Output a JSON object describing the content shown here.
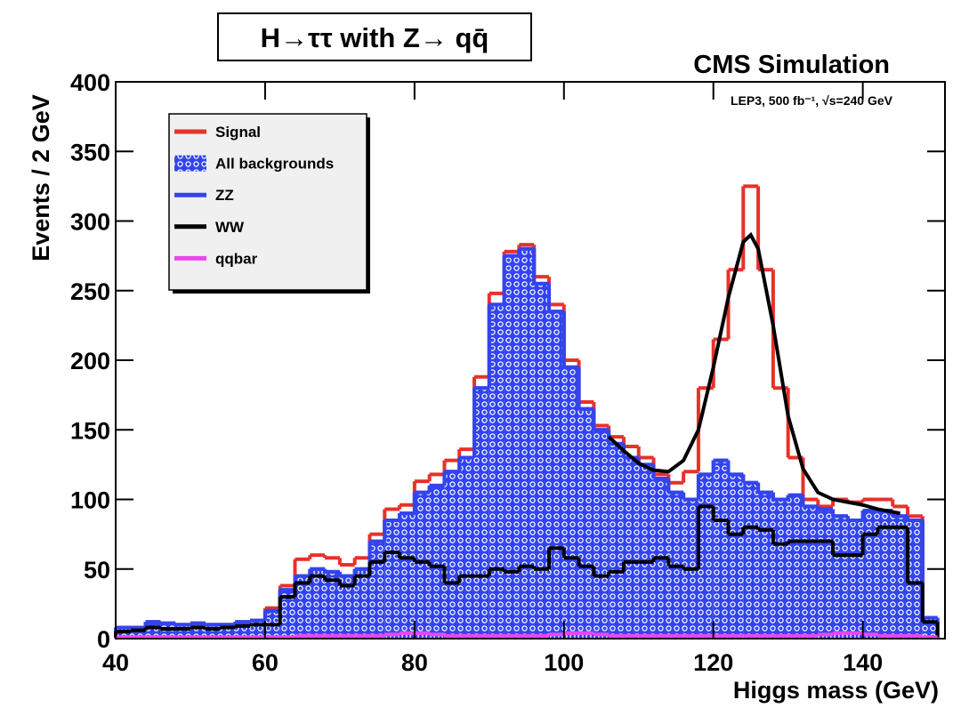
{
  "chart_data": {
    "type": "histogram",
    "title": "H→ττ with Z→ qq̄",
    "annotations": [
      "CMS Simulation",
      "LEP3, 500 fb⁻¹, √s=240 GeV"
    ],
    "x_label": "Higgs mass (GeV)",
    "y_label": "Events / 2 GeV",
    "bins": [
      40,
      42,
      44,
      46,
      48,
      50,
      52,
      54,
      56,
      58,
      60,
      62,
      64,
      66,
      68,
      70,
      72,
      74,
      76,
      78,
      80,
      82,
      84,
      86,
      88,
      90,
      92,
      94,
      96,
      98,
      100,
      102,
      104,
      106,
      108,
      110,
      112,
      114,
      116,
      118,
      120,
      122,
      124,
      126,
      128,
      130,
      132,
      134,
      136,
      138,
      140,
      142,
      144,
      146,
      148,
      150
    ],
    "series": [
      {
        "name": "Signal",
        "color": "#e8312a",
        "stacked_on": [
          "All backgrounds"
        ],
        "values": [
          0,
          0,
          0,
          0,
          0,
          0,
          0,
          0,
          0,
          0,
          2,
          3,
          12,
          10,
          10,
          8,
          8,
          5,
          8,
          6,
          8,
          8,
          8,
          6,
          8,
          8,
          3,
          3,
          5,
          5,
          5,
          5,
          3,
          5,
          8,
          5,
          3,
          7,
          20,
          62,
          87,
          147,
          213,
          160,
          80,
          27,
          5,
          2,
          12,
          13,
          8,
          8,
          7,
          3,
          0
        ]
      },
      {
        "name": "All backgrounds",
        "color": "#3344ee",
        "fill": "hatch",
        "values": [
          8,
          8,
          12,
          11,
          10,
          11,
          10,
          10,
          12,
          13,
          20,
          35,
          45,
          50,
          48,
          45,
          50,
          70,
          85,
          90,
          105,
          110,
          120,
          130,
          180,
          240,
          275,
          280,
          255,
          235,
          195,
          165,
          150,
          140,
          130,
          125,
          115,
          105,
          100,
          118,
          128,
          118,
          112,
          105,
          100,
          103,
          95,
          93,
          88,
          85,
          92,
          92,
          88,
          85,
          15
        ]
      },
      {
        "name": "ZZ",
        "color": "#3344ee",
        "stacked_on": [
          "WW",
          "qqbar"
        ],
        "values": [
          2,
          1,
          3,
          3,
          2,
          2,
          2,
          1,
          2,
          2,
          9,
          4,
          3,
          3,
          4,
          5,
          3,
          13,
          20,
          28,
          46,
          55,
          78,
          83,
          133,
          188,
          225,
          226,
          203,
          167,
          133,
          109,
          102,
          90,
          73,
          68,
          55,
          51,
          48,
          21,
          41,
          41,
          30,
          25,
          30,
          31,
          23,
          20,
          24,
          21,
          14,
          10,
          6,
          43,
          2
        ]
      },
      {
        "name": "WW",
        "color": "#000000",
        "values": [
          5,
          6,
          8,
          7,
          7,
          8,
          7,
          8,
          9,
          10,
          10,
          30,
          40,
          45,
          42,
          38,
          45,
          55,
          62,
          58,
          55,
          52,
          40,
          45,
          45,
          50,
          48,
          52,
          50,
          65,
          58,
          52,
          45,
          48,
          55,
          55,
          58,
          52,
          50,
          95,
          85,
          75,
          80,
          78,
          68,
          70,
          70,
          70,
          60,
          60,
          75,
          80,
          80,
          40,
          12
        ]
      },
      {
        "name": "qqbar",
        "color": "#ee44ee",
        "values": [
          1,
          1,
          1,
          1,
          1,
          1,
          1,
          1,
          1,
          1,
          1,
          1,
          2,
          2,
          2,
          2,
          2,
          2,
          3,
          4,
          4,
          3,
          2,
          2,
          2,
          2,
          2,
          2,
          2,
          3,
          4,
          4,
          3,
          2,
          2,
          2,
          2,
          2,
          2,
          2,
          2,
          2,
          2,
          2,
          2,
          2,
          2,
          3,
          4,
          4,
          3,
          2,
          2,
          2,
          1
        ]
      }
    ],
    "fit": {
      "color": "#000000",
      "x": [
        106,
        108,
        110,
        112,
        114,
        116,
        118,
        120,
        122,
        124,
        125,
        126,
        128,
        130,
        132,
        134,
        136,
        138,
        140,
        142,
        145
      ],
      "values": [
        145,
        135,
        126,
        121,
        120,
        128,
        150,
        195,
        245,
        285,
        290,
        280,
        225,
        160,
        122,
        105,
        100,
        98,
        96,
        93,
        90
      ]
    },
    "xlim": [
      40,
      151
    ],
    "ylim": [
      0,
      400
    ],
    "xticks": [
      40,
      60,
      80,
      100,
      120,
      140
    ],
    "yticks": [
      0,
      50,
      100,
      150,
      200,
      250,
      300,
      350,
      400
    ],
    "legend": "upper left"
  }
}
